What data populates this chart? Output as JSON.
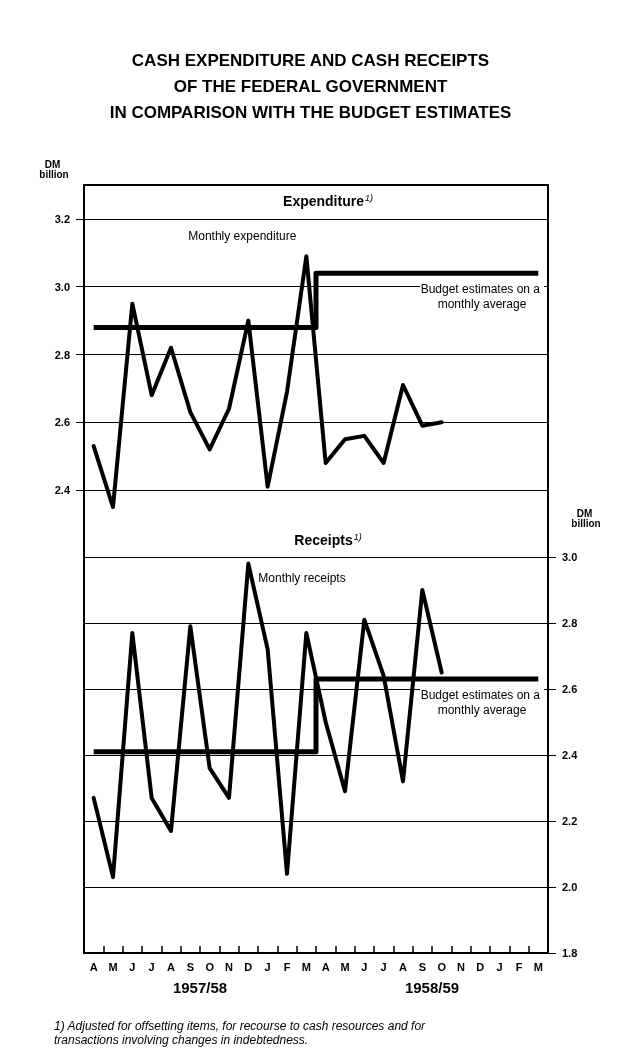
{
  "chart_data": [
    {
      "type": "line",
      "title": "CASH EXPENDITURE AND CASH RECEIPTS\nOF THE FEDERAL GOVERNMENT\nIN COMPARISON WITH THE BUDGET ESTIMATES",
      "ylabel": "DM billion",
      "categories": [
        "A",
        "M",
        "J",
        "J",
        "A",
        "S",
        "O",
        "N",
        "D",
        "J",
        "F",
        "M",
        "A",
        "M",
        "J",
        "J",
        "A",
        "S",
        "O",
        "N",
        "D",
        "J",
        "F",
        "M"
      ],
      "series": [
        {
          "name": "Monthly expenditure",
          "color": "#000000",
          "values": [
            2.53,
            2.35,
            2.95,
            2.68,
            2.82,
            2.63,
            2.52,
            2.64,
            2.9,
            2.41,
            2.69,
            3.09,
            2.48,
            2.55,
            2.56,
            2.48,
            2.71,
            2.59,
            2.6,
            null,
            null,
            null,
            null,
            null
          ]
        },
        {
          "name": "Budget estimates on a monthly average",
          "type": "step",
          "color": "#000000",
          "values": [
            2.88,
            2.88,
            2.88,
            2.88,
            2.88,
            2.88,
            2.88,
            2.88,
            2.88,
            2.88,
            2.88,
            2.88,
            3.04,
            3.04,
            3.04,
            3.04,
            3.04,
            3.04,
            3.04,
            3.04,
            3.04,
            3.04,
            3.04,
            3.04
          ]
        }
      ],
      "ylim": [
        2.3,
        3.3
      ],
      "yticks": [
        2.4,
        2.6,
        2.8,
        {
          "value": 3.0,
          "label": "3.0"
        },
        3.2
      ],
      "grid": "y",
      "tick_labels": "y",
      "annotations": [
        "Expenditure$^{1)}$"
      ]
    },
    {
      "type": "line",
      "y2label": "DM billion",
      "categories": [
        "A",
        "M",
        "J",
        "J",
        "A",
        "S",
        "O",
        "N",
        "D",
        "J",
        "F",
        "M",
        "A",
        "M",
        "J",
        "J",
        "A",
        "S",
        "O",
        "N",
        "D",
        "J",
        "F",
        "M"
      ],
      "series": [
        {
          "name": "Monthly receipts",
          "color": "#000000",
          "axis": "y2",
          "values": [
            2.27,
            2.03,
            2.77,
            2.27,
            2.17,
            2.79,
            2.36,
            2.27,
            2.98,
            2.72,
            2.04,
            2.77,
            2.5,
            2.29,
            2.81,
            2.64,
            2.32,
            2.9,
            2.65,
            null,
            null,
            null,
            null,
            null
          ]
        },
        {
          "name": "Budget estimates on a monthly average",
          "type": "step",
          "color": "#000000",
          "axis": "y2",
          "values": [
            2.41,
            2.41,
            2.41,
            2.41,
            2.41,
            2.41,
            2.41,
            2.41,
            2.41,
            2.41,
            2.41,
            2.41,
            2.63,
            2.63,
            2.63,
            2.63,
            2.63,
            2.63,
            2.63,
            2.63,
            2.63,
            2.63,
            2.63,
            2.63
          ]
        }
      ],
      "y2lim": [
        1.8,
        3.1
      ],
      "y2ticks": [
        1.8,
        {
          "value": 2.0,
          "label": "2.0"
        },
        2.2,
        2.4,
        2.6,
        2.8,
        {
          "value": 3.0,
          "label": "3.0"
        }
      ],
      "grid": "y",
      "annotations": [
        "Receipts$^{1)}$",
        "1957/58",
        "1958/59",
        "1) Adjusted for offsetting items, for recourse to cash resources and for transactions involving changes in indebtedness."
      ]
    }
  ]
}
